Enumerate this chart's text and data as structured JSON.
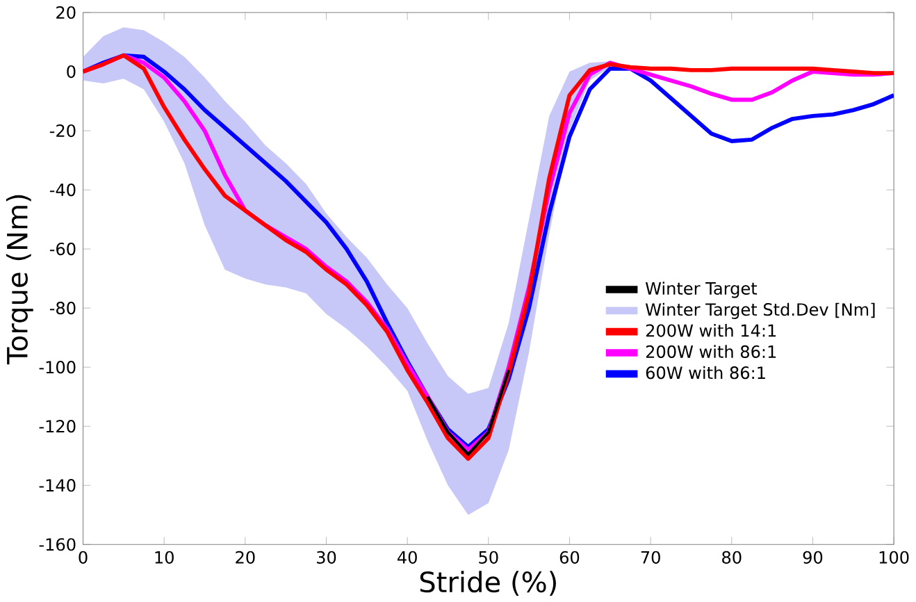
{
  "chart_data": {
    "type": "line",
    "xlabel": "Stride (%)",
    "ylabel": "Torque (Nm)",
    "xlim": [
      0,
      100
    ],
    "ylim": [
      -160,
      20
    ],
    "xticks": [
      0,
      10,
      20,
      30,
      40,
      50,
      60,
      70,
      80,
      90,
      100
    ],
    "yticks": [
      -160,
      -140,
      -120,
      -100,
      -80,
      -60,
      -40,
      -20,
      0,
      20
    ],
    "legend": "right",
    "annotations": [
      "Winter Target Std.Dev [Nm]"
    ],
    "grid": false,
    "marker": "none",
    "line_style": "solid",
    "x": [
      0,
      2.5,
      5,
      7.5,
      10,
      12.5,
      15,
      17.5,
      20,
      22.5,
      25,
      27.5,
      30,
      32.5,
      35,
      37.5,
      40,
      42.5,
      45,
      47.5,
      50,
      52.5,
      55,
      57.5,
      60,
      62.5,
      65,
      67.5,
      70,
      72.5,
      75,
      77.5,
      80,
      82.5,
      85,
      87.5,
      90,
      92.5,
      95,
      97.5,
      100
    ],
    "series": [
      {
        "name": "Winter Target",
        "color": "#000000",
        "values": [
          null,
          null,
          null,
          null,
          null,
          null,
          null,
          null,
          null,
          null,
          null,
          null,
          null,
          null,
          null,
          null,
          null,
          -110,
          -122,
          -129.5,
          -122,
          -101,
          null,
          null,
          null,
          null,
          null,
          null,
          null,
          null,
          null,
          null,
          null,
          null,
          null,
          null,
          null,
          null,
          null,
          null,
          null
        ],
        "upper": [
          5,
          12,
          15,
          14,
          10,
          5,
          -2,
          -10,
          -17,
          -25,
          -31,
          -38,
          -48,
          -56,
          -63,
          -72,
          -80,
          -92,
          -103,
          -109,
          -107,
          -85,
          -50,
          -15,
          0,
          3,
          3.5,
          null,
          null,
          null,
          null,
          null,
          null,
          null,
          null,
          null,
          null,
          null,
          null,
          null,
          null
        ],
        "lower": [
          -3,
          -4,
          -2.4,
          -6,
          -17,
          -31,
          -52,
          -67,
          -70,
          -72,
          -73,
          -75,
          -82,
          -87,
          -93,
          -100,
          -108,
          -125,
          -140,
          -150,
          -146,
          -128,
          -95,
          -55,
          -20,
          -3,
          1.5,
          null,
          null,
          null,
          null,
          null,
          null,
          null,
          null,
          null,
          null,
          null,
          null,
          null,
          null
        ]
      },
      {
        "name": "200W with 14:1",
        "color": "#ff0000",
        "values": [
          0,
          2.5,
          5.5,
          1,
          -12,
          -23,
          -33,
          -42,
          -47,
          -52,
          -57,
          -61,
          -67,
          -72,
          -79,
          -88,
          -101,
          -112,
          -124,
          -131,
          -124,
          -102,
          -75,
          -36,
          -8,
          0.5,
          2.5,
          1.5,
          1,
          1,
          0.5,
          0.5,
          1,
          1,
          1,
          1,
          1,
          0.5,
          0,
          -0.5,
          -0.5
        ]
      },
      {
        "name": "200W with 86:1",
        "color": "#ff00ff",
        "values": [
          0,
          2.5,
          5.5,
          3,
          -2,
          -10,
          -20,
          -35,
          -47,
          -52,
          -56,
          -60,
          -66,
          -71,
          -78,
          -87,
          -99,
          -110,
          -122,
          -128,
          -122,
          -100,
          -73,
          -40,
          -14,
          -1,
          3,
          1,
          -1,
          -3,
          -5,
          -7.5,
          -9.5,
          -9.5,
          -7,
          -3,
          0,
          -0.5,
          -1,
          -1,
          -0.5
        ]
      },
      {
        "name": "60W with 86:1",
        "color": "#0000ff",
        "values": [
          0,
          3,
          5.5,
          5,
          0,
          -6,
          -13,
          -19,
          -25,
          -31,
          -37,
          -44,
          -51,
          -60,
          -71,
          -85,
          -98,
          -110,
          -121,
          -127,
          -121,
          -104,
          -80,
          -48,
          -22,
          -6,
          1,
          1,
          -3,
          -9,
          -15,
          -21,
          -23.5,
          -23,
          -19,
          -16,
          -15,
          -14.5,
          -13,
          -11,
          -8
        ]
      }
    ]
  }
}
